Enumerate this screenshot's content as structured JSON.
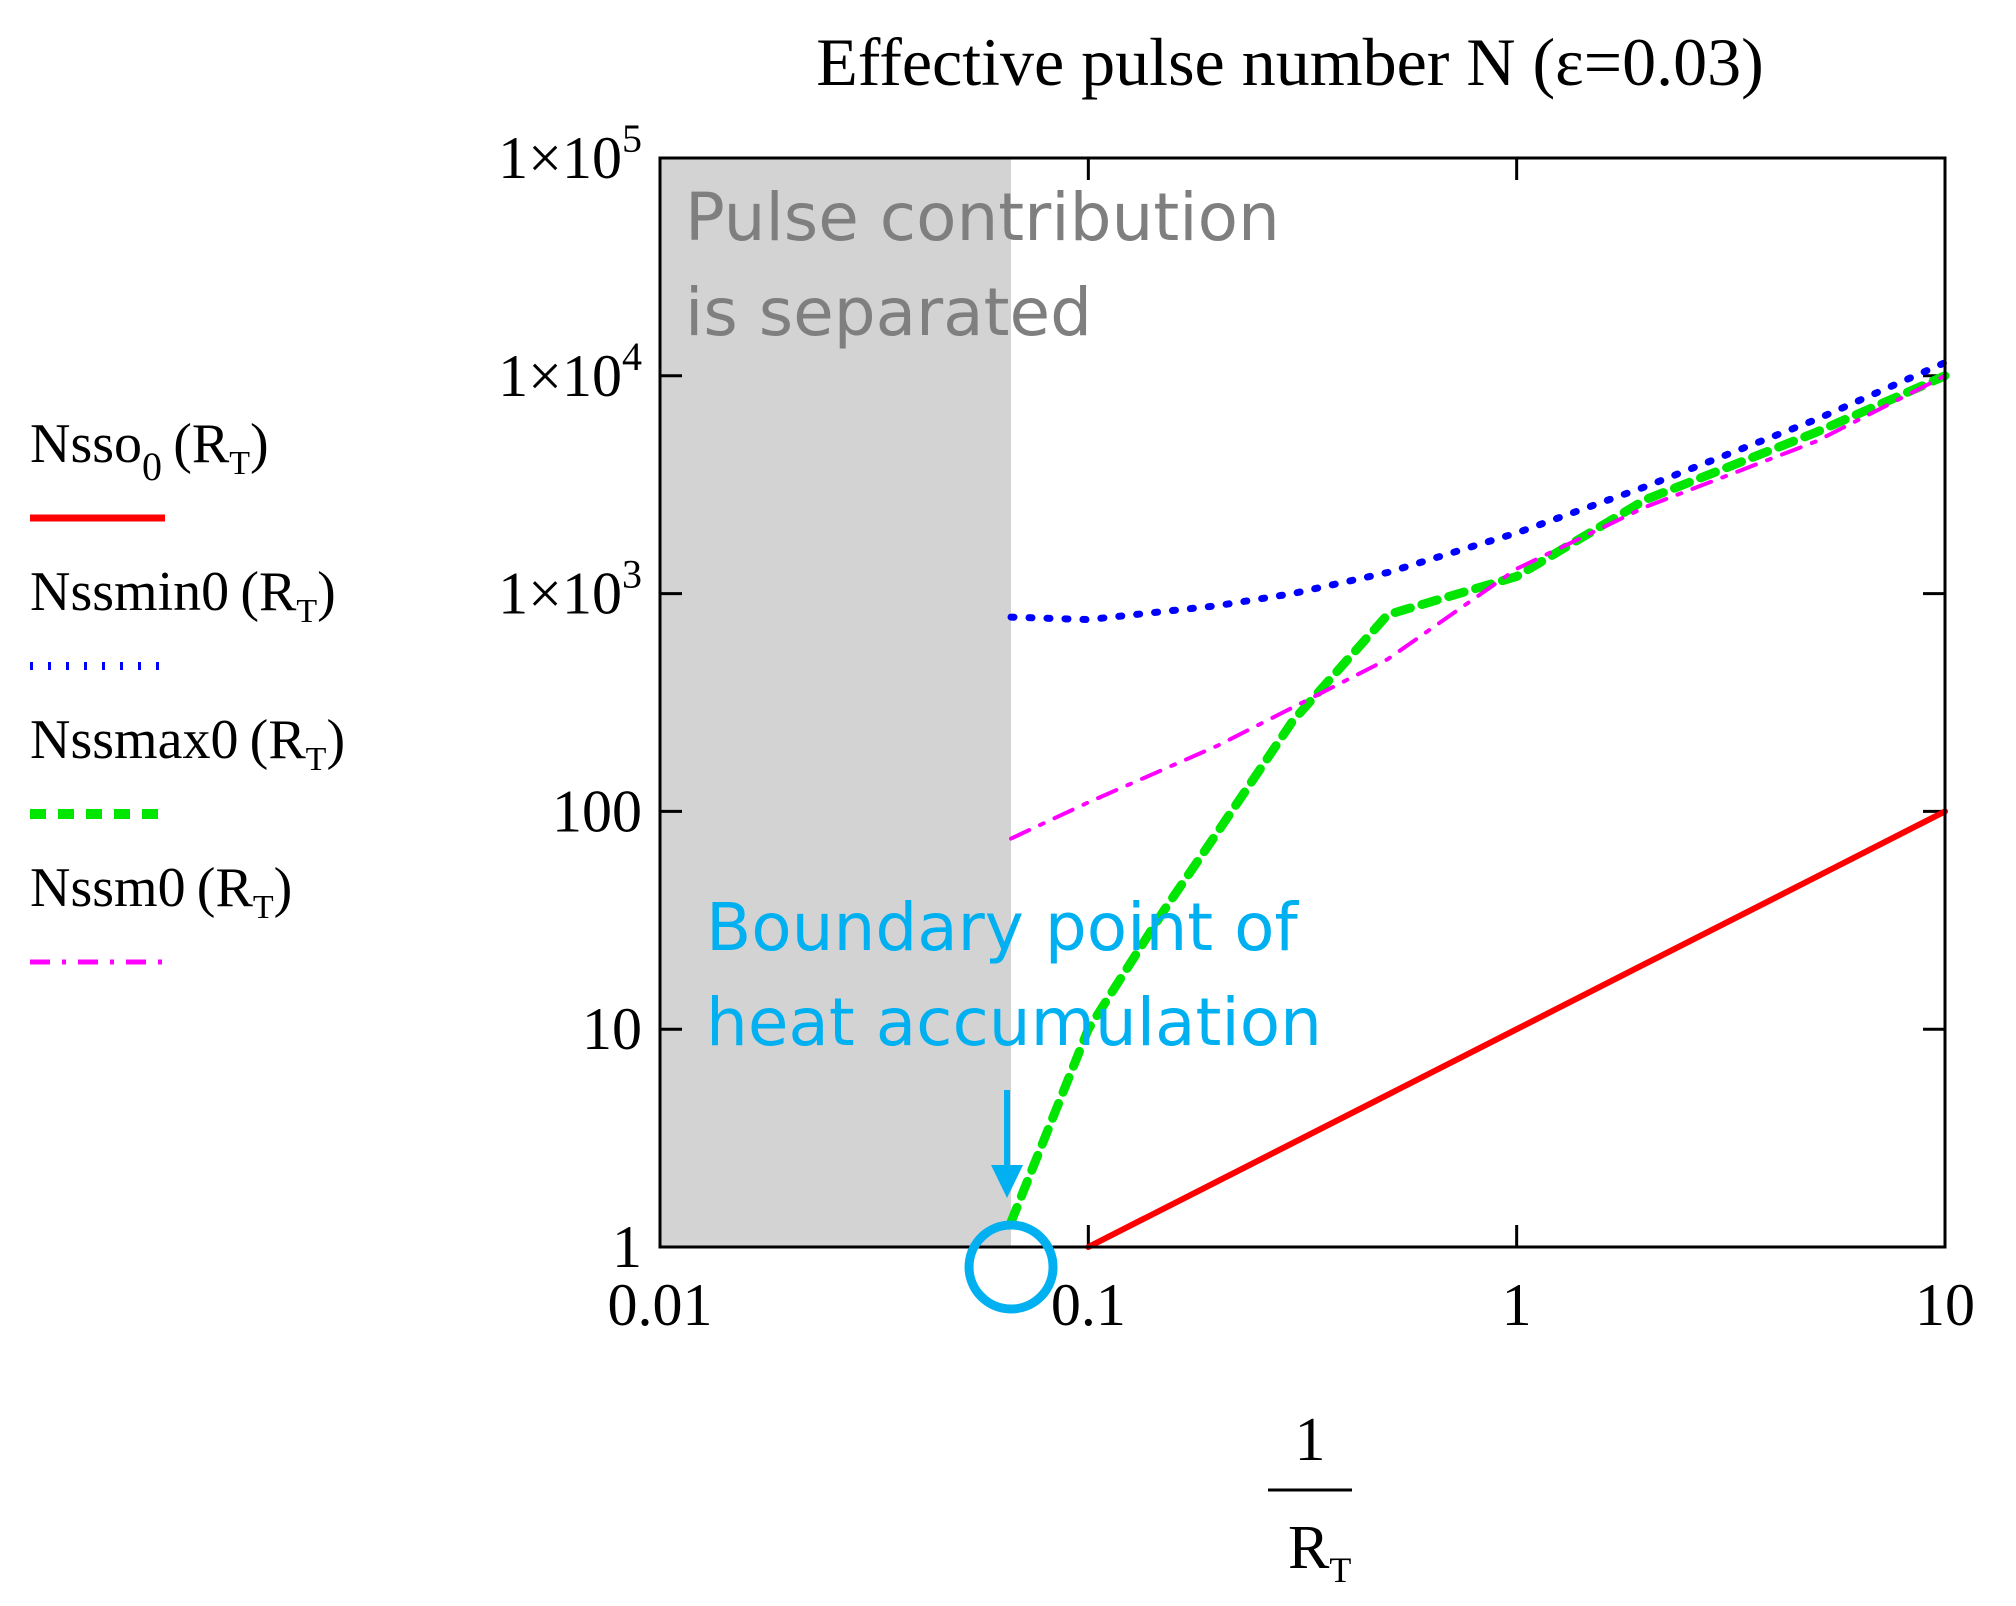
{
  "chart_data": {
    "type": "line",
    "title": "Effective pulse number N (ε=0.03)",
    "x_scale": "log",
    "y_scale": "log",
    "xlim": [
      0.01,
      10
    ],
    "ylim": [
      1,
      100000
    ],
    "x_ticks": [
      {
        "value": 0.01,
        "label": "0.01"
      },
      {
        "value": 0.1,
        "label": "0.1"
      },
      {
        "value": 1,
        "label": "1"
      },
      {
        "value": 10,
        "label": "10"
      }
    ],
    "y_ticks": [
      {
        "value": 1,
        "label": "1",
        "mantissa": "",
        "exponent": ""
      },
      {
        "value": 10,
        "label": "10",
        "mantissa": "",
        "exponent": ""
      },
      {
        "value": 100,
        "label": "100",
        "mantissa": "",
        "exponent": ""
      },
      {
        "value": 1000,
        "label": "",
        "mantissa": "1×10",
        "exponent": "3"
      },
      {
        "value": 10000,
        "label": "",
        "mantissa": "1×10",
        "exponent": "4"
      },
      {
        "value": 100000,
        "label": "",
        "mantissa": "1×10",
        "exponent": "5"
      }
    ],
    "xlabel": {
      "numerator": "1",
      "denominator": "R",
      "subscript": "T"
    },
    "shaded_region": {
      "x_range": [
        0.01,
        0.066
      ],
      "color": "#d3d3d3",
      "label_lines": [
        "Pulse contribution",
        "is separated"
      ]
    },
    "series": [
      {
        "name": "Nsso0",
        "legend_main": "Nsso",
        "legend_sub": "0",
        "legend_arg": "R",
        "legend_arg_sub": "T",
        "color": "#ff0000",
        "style": "solid",
        "x": [
          0.1,
          0.2,
          0.5,
          1,
          2,
          5,
          10
        ],
        "y": [
          1,
          2,
          5,
          10,
          20,
          50,
          100
        ]
      },
      {
        "name": "Nssmin0",
        "legend_main": "Nssmin0",
        "legend_sub": "",
        "legend_arg": "R",
        "legend_arg_sub": "T",
        "color": "#0000ff",
        "style": "dotted",
        "x": [
          0.066,
          0.1,
          0.2,
          0.3,
          0.5,
          1,
          2,
          5,
          10
        ],
        "y": [
          780,
          760,
          880,
          1000,
          1250,
          1900,
          3100,
          6300,
          11500
        ]
      },
      {
        "name": "Nssmax0",
        "legend_main": "Nssmax0",
        "legend_sub": "",
        "legend_arg": "R",
        "legend_arg_sub": "T",
        "color": "#00e600",
        "style": "dashed",
        "x": [
          0.066,
          0.1,
          0.15,
          0.2,
          0.3,
          0.5,
          1,
          2,
          5,
          10
        ],
        "y": [
          1.3,
          10,
          35,
          80,
          260,
          800,
          1200,
          2700,
          5500,
          10000
        ]
      },
      {
        "name": "Nssm0",
        "legend_main": "Nssm0",
        "legend_sub": "",
        "legend_arg": "R",
        "legend_arg_sub": "T",
        "color": "#ff00ff",
        "style": "dashdot",
        "x": [
          0.066,
          0.1,
          0.2,
          0.5,
          1,
          2,
          5,
          10
        ],
        "y": [
          75,
          110,
          200,
          500,
          1300,
          2500,
          5000,
          10000
        ]
      }
    ],
    "annotation": {
      "label_lines": [
        "Boundary point of",
        "heat accumulation"
      ],
      "color": "#00b0f0",
      "x": 0.066,
      "y": 1
    }
  }
}
